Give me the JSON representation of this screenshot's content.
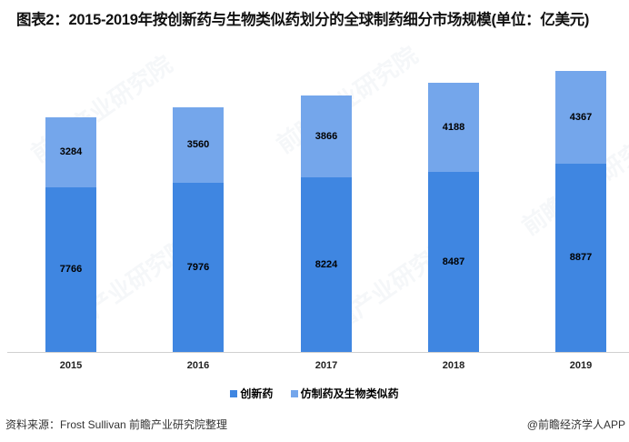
{
  "title": "图表2：2015-2019年按创新药与生物类似药划分的全球制药细分市场规模(单位：亿美元)",
  "footer": {
    "source": "资料来源：Frost Sullivan   前瞻产业研究院整理",
    "credit": "@前瞻经济学人APP"
  },
  "watermark": "前瞻产业研究院",
  "colors": {
    "innovative": "#3f86e1",
    "generic": "#74a6eb"
  },
  "chart_data": {
    "type": "bar",
    "stacked": true,
    "title": "图表2：2015-2019年按创新药与生物类似药划分的全球制药细分市场规模(单位：亿美元)",
    "xlabel": "",
    "ylabel": "亿美元",
    "categories": [
      "2015",
      "2016",
      "2017",
      "2018",
      "2019"
    ],
    "series": [
      {
        "name": "创新药",
        "values": [
          7766,
          7976,
          8224,
          8487,
          8877
        ],
        "color": "#3f86e1"
      },
      {
        "name": "仿制药及生物类似药",
        "values": [
          3284,
          3560,
          3866,
          4188,
          4367
        ],
        "color": "#74a6eb"
      }
    ],
    "legend_position": "bottom",
    "grid": false,
    "ylim": [
      0,
      13500
    ]
  },
  "legend": [
    "创新药",
    "仿制药及生物类似药"
  ]
}
